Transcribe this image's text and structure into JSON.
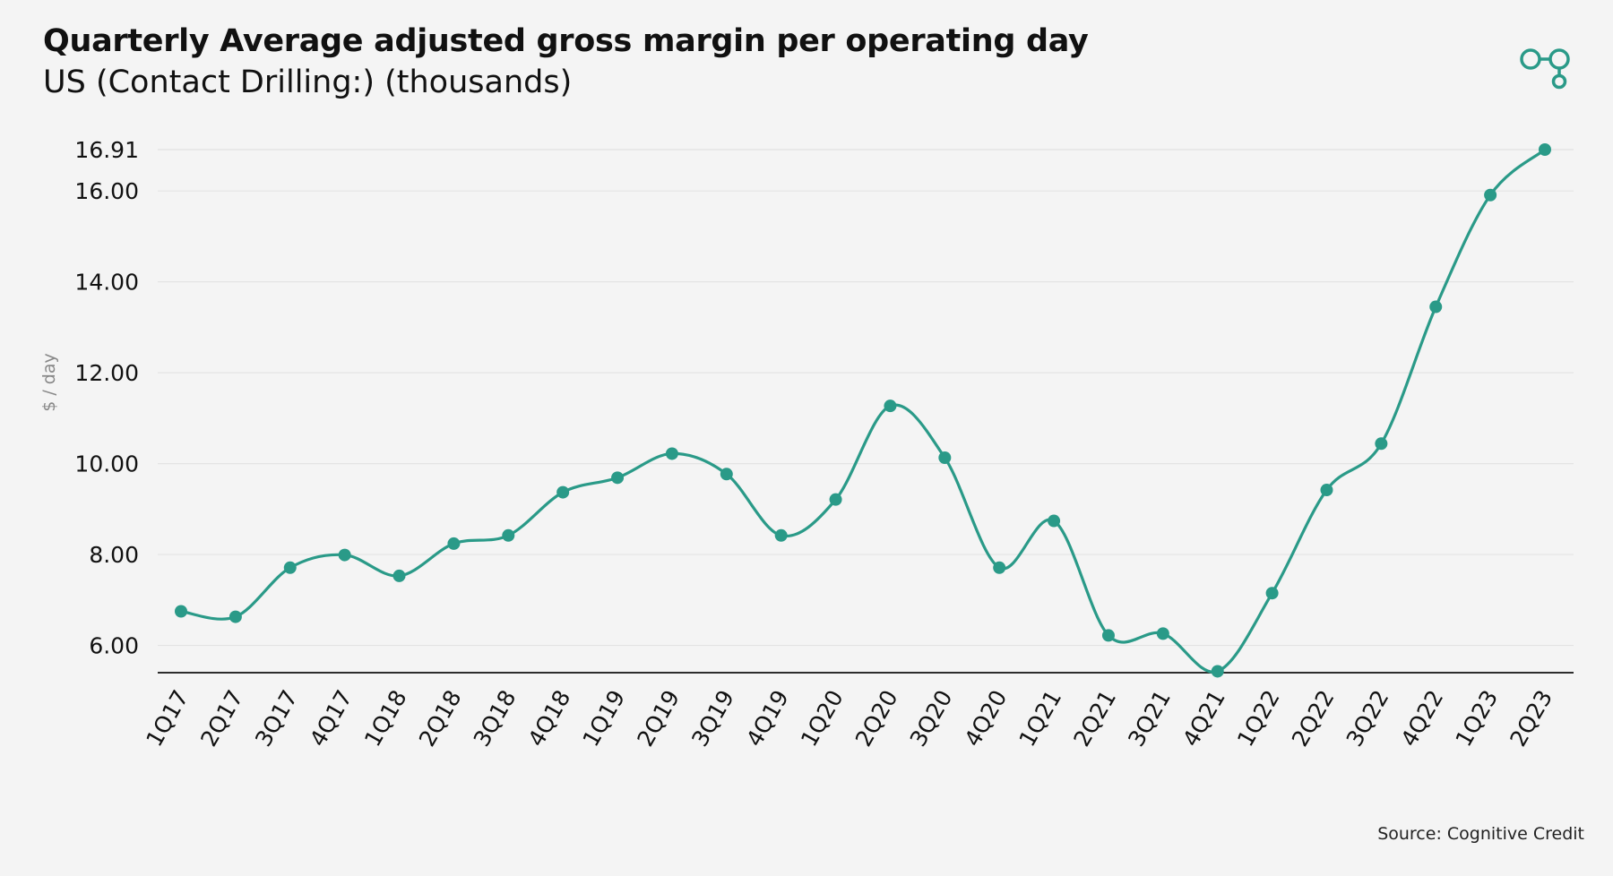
{
  "header": {
    "title": "Quarterly Average adjusted gross margin per operating day",
    "subtitle": "US (Contact Drilling:) (thousands)"
  },
  "footer": {
    "source": "Source: Cognitive Credit"
  },
  "logo": {
    "icon": "linked-circles-logo-icon",
    "color": "#2a9a88"
  },
  "chart_data": {
    "type": "line",
    "title": "Quarterly Average adjusted gross margin per operating day",
    "subtitle": "US (Contact Drilling:) (thousands)",
    "xlabel": "",
    "ylabel": "$ / day",
    "categories": [
      "1Q17",
      "2Q17",
      "3Q17",
      "4Q17",
      "1Q18",
      "2Q18",
      "3Q18",
      "4Q18",
      "1Q19",
      "2Q19",
      "3Q19",
      "4Q19",
      "1Q20",
      "2Q20",
      "3Q20",
      "4Q20",
      "1Q21",
      "2Q21",
      "3Q21",
      "4Q21",
      "1Q22",
      "2Q22",
      "3Q22",
      "4Q22",
      "1Q23",
      "2Q23"
    ],
    "series": [
      {
        "values": [
          6.75,
          6.63,
          7.71,
          7.99,
          7.53,
          8.24,
          8.42,
          9.37,
          9.69,
          10.22,
          9.77,
          8.42,
          9.21,
          11.27,
          10.13,
          7.71,
          8.74,
          6.22,
          6.26,
          5.43,
          7.15,
          9.42,
          10.44,
          13.45,
          15.91,
          16.91
        ]
      }
    ],
    "yticks": [
      6.0,
      8.0,
      10.0,
      12.0,
      14.0,
      16.0,
      16.91
    ],
    "ytick_labels": [
      "6.00",
      "8.00",
      "10.00",
      "12.00",
      "14.00",
      "16.00",
      "16.91"
    ],
    "ylim": [
      5.4,
      16.91
    ],
    "grid": true,
    "legend": "none",
    "line_color": "#2a9a88",
    "grid_color": "#e3e3e3",
    "axis_color": "#111111"
  }
}
